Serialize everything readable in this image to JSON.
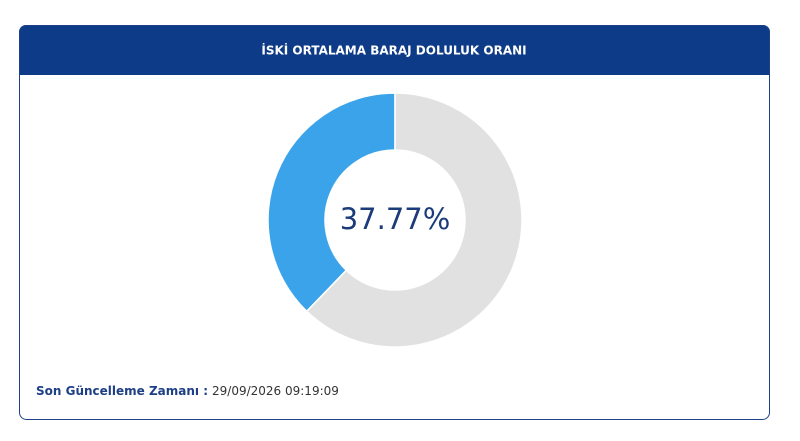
{
  "chart_data": {
    "type": "donut",
    "title": "İSKİ ORTALAMA BARAJ DOLULUK ORANI",
    "values": [
      37.77,
      62.23
    ],
    "value_labels": [
      "37.77%",
      null
    ],
    "colors": [
      "#3aa3ea",
      "#e1e1e1"
    ]
  },
  "footer": {
    "label": "Son Güncelleme Zamanı :",
    "time": "29/09/2026 09:19:09"
  }
}
